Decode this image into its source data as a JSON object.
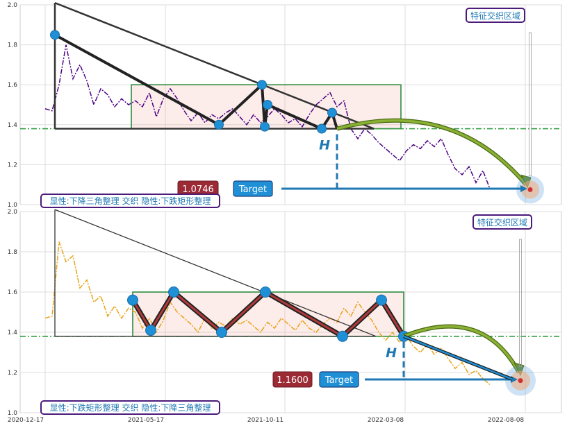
{
  "chart_data": [
    {
      "type": "line",
      "panel": "top",
      "ylim": [
        1.0,
        2.0
      ],
      "y_ticks": [
        "1.0",
        "1.2",
        "1.4",
        "1.6",
        "1.8",
        "2.0"
      ],
      "series_color": "#4b0082",
      "series": [
        {
          "values": [
            [
              0,
              1.48
            ],
            [
              10,
              1.47
            ],
            [
              20,
              1.6
            ],
            [
              30,
              1.8
            ],
            [
              40,
              1.63
            ],
            [
              50,
              1.7
            ],
            [
              60,
              1.62
            ],
            [
              70,
              1.5
            ],
            [
              80,
              1.58
            ],
            [
              90,
              1.55
            ],
            [
              100,
              1.49
            ],
            [
              110,
              1.53
            ],
            [
              120,
              1.5
            ],
            [
              130,
              1.52
            ],
            [
              140,
              1.49
            ],
            [
              150,
              1.56
            ],
            [
              160,
              1.44
            ],
            [
              170,
              1.53
            ],
            [
              180,
              1.58
            ],
            [
              190,
              1.53
            ],
            [
              200,
              1.47
            ],
            [
              210,
              1.42
            ],
            [
              220,
              1.46
            ],
            [
              230,
              1.41
            ],
            [
              240,
              1.45
            ],
            [
              250,
              1.43
            ],
            [
              260,
              1.46
            ],
            [
              270,
              1.48
            ],
            [
              280,
              1.44
            ],
            [
              290,
              1.4
            ],
            [
              300,
              1.45
            ],
            [
              310,
              1.41
            ],
            [
              320,
              1.44
            ],
            [
              330,
              1.48
            ],
            [
              340,
              1.45
            ],
            [
              350,
              1.41
            ],
            [
              360,
              1.43
            ],
            [
              370,
              1.39
            ],
            [
              380,
              1.45
            ],
            [
              390,
              1.5
            ],
            [
              400,
              1.53
            ],
            [
              410,
              1.56
            ],
            [
              420,
              1.49
            ],
            [
              430,
              1.52
            ],
            [
              440,
              1.38
            ],
            [
              450,
              1.33
            ],
            [
              460,
              1.38
            ],
            [
              470,
              1.35
            ],
            [
              480,
              1.31
            ],
            [
              490,
              1.28
            ],
            [
              500,
              1.25
            ],
            [
              510,
              1.22
            ],
            [
              520,
              1.27
            ],
            [
              530,
              1.3
            ],
            [
              540,
              1.28
            ],
            [
              550,
              1.32
            ],
            [
              560,
              1.29
            ],
            [
              570,
              1.33
            ],
            [
              580,
              1.25
            ],
            [
              590,
              1.18
            ],
            [
              600,
              1.15
            ],
            [
              610,
              1.19
            ],
            [
              620,
              1.11
            ],
            [
              630,
              1.17
            ],
            [
              640,
              1.08
            ]
          ]
        }
      ],
      "pattern_lines": [
        {
          "role": "triangle-upper",
          "points": [
            [
              14,
              2.01
            ],
            [
              473,
              1.38
            ]
          ]
        },
        {
          "role": "triangle-vertical",
          "points": [
            [
              14,
              2.01
            ],
            [
              14,
              1.38
            ]
          ]
        },
        {
          "role": "triangle-base",
          "points": [
            [
              14,
              1.38
            ],
            [
              473,
              1.38
            ]
          ]
        }
      ],
      "zigzag": [
        [
          14,
          1.85
        ],
        [
          250,
          1.4
        ],
        [
          312,
          1.6
        ],
        [
          316,
          1.39
        ],
        [
          320,
          1.5
        ],
        [
          398,
          1.38
        ],
        [
          413,
          1.46
        ],
        [
          420,
          1.38
        ]
      ],
      "rectangle": {
        "x0": 124,
        "x1": 512,
        "y0": 1.38,
        "y1": 1.6
      },
      "support_level": 1.38,
      "target_value": "1.0746",
      "target_label": "Target",
      "h_label": "H",
      "zone_label": "特征交织区域",
      "bottom_label": "显性:下降三角整理 交织 隐性:下跌矩形整理",
      "target_point": [
        698,
        1.075
      ],
      "arc": {
        "from": [
          420,
          1.38
        ],
        "to": [
          692,
          1.1
        ]
      }
    },
    {
      "type": "line",
      "panel": "bottom",
      "ylim": [
        1.0,
        2.0
      ],
      "y_ticks": [
        "1.0",
        "1.2",
        "1.4",
        "1.6",
        "1.8",
        "2.0"
      ],
      "x_ticks": [
        "2020-12-17",
        "2021-05-17",
        "2021-10-11",
        "2022-03-08",
        "2022-08-08"
      ],
      "series_color": "#e8a317",
      "series": [
        {
          "values": [
            [
              0,
              1.47
            ],
            [
              10,
              1.48
            ],
            [
              20,
              1.85
            ],
            [
              30,
              1.75
            ],
            [
              40,
              1.78
            ],
            [
              50,
              1.62
            ],
            [
              60,
              1.66
            ],
            [
              70,
              1.55
            ],
            [
              80,
              1.58
            ],
            [
              90,
              1.48
            ],
            [
              100,
              1.53
            ],
            [
              110,
              1.47
            ],
            [
              120,
              1.52
            ],
            [
              130,
              1.5
            ],
            [
              140,
              1.42
            ],
            [
              150,
              1.47
            ],
            [
              160,
              1.4
            ],
            [
              170,
              1.46
            ],
            [
              180,
              1.55
            ],
            [
              190,
              1.5
            ],
            [
              200,
              1.47
            ],
            [
              210,
              1.44
            ],
            [
              220,
              1.4
            ],
            [
              230,
              1.47
            ],
            [
              240,
              1.42
            ],
            [
              250,
              1.45
            ],
            [
              260,
              1.43
            ],
            [
              270,
              1.47
            ],
            [
              280,
              1.44
            ],
            [
              290,
              1.46
            ],
            [
              300,
              1.43
            ],
            [
              310,
              1.4
            ],
            [
              320,
              1.45
            ],
            [
              330,
              1.42
            ],
            [
              340,
              1.47
            ],
            [
              350,
              1.44
            ],
            [
              360,
              1.41
            ],
            [
              370,
              1.46
            ],
            [
              380,
              1.42
            ],
            [
              390,
              1.4
            ],
            [
              400,
              1.44
            ],
            [
              410,
              1.47
            ],
            [
              420,
              1.45
            ],
            [
              430,
              1.52
            ],
            [
              440,
              1.48
            ],
            [
              450,
              1.55
            ],
            [
              460,
              1.5
            ],
            [
              470,
              1.46
            ],
            [
              480,
              1.4
            ],
            [
              490,
              1.36
            ],
            [
              500,
              1.4
            ],
            [
              510,
              1.35
            ],
            [
              520,
              1.38
            ],
            [
              530,
              1.33
            ],
            [
              540,
              1.3
            ],
            [
              550,
              1.34
            ],
            [
              560,
              1.29
            ],
            [
              570,
              1.32
            ],
            [
              580,
              1.27
            ],
            [
              590,
              1.22
            ],
            [
              600,
              1.25
            ],
            [
              610,
              1.19
            ],
            [
              620,
              1.21
            ],
            [
              630,
              1.17
            ],
            [
              640,
              1.14
            ]
          ]
        }
      ],
      "pattern_lines": [
        {
          "role": "triangle-upper",
          "points": [
            [
              14,
              2.01
            ],
            [
              476,
              1.38
            ]
          ]
        },
        {
          "role": "triangle-vertical",
          "points": [
            [
              14,
              2.01
            ],
            [
              14,
              1.38
            ]
          ]
        },
        {
          "role": "triangle-base",
          "points": [
            [
              14,
              1.38
            ],
            [
              476,
              1.38
            ]
          ]
        }
      ],
      "zigzag": [
        [
          126,
          1.56
        ],
        [
          152,
          1.41
        ],
        [
          185,
          1.6
        ],
        [
          254,
          1.4
        ],
        [
          317,
          1.6
        ],
        [
          428,
          1.38
        ],
        [
          484,
          1.56
        ],
        [
          516,
          1.38
        ]
      ],
      "rectangle": {
        "x0": 126,
        "x1": 516,
        "y0": 1.38,
        "y1": 1.6
      },
      "support_level": 1.38,
      "target_value": "1.1600",
      "target_label": "Target",
      "h_label": "H",
      "zone_label": "特征交织区域",
      "bottom_label": "显性:下跌矩形整理 交织 隐性:下降三角整理",
      "target_point": [
        684,
        1.16
      ],
      "arc": {
        "from": [
          516,
          1.38
        ],
        "to": [
          682,
          1.2
        ]
      }
    }
  ]
}
